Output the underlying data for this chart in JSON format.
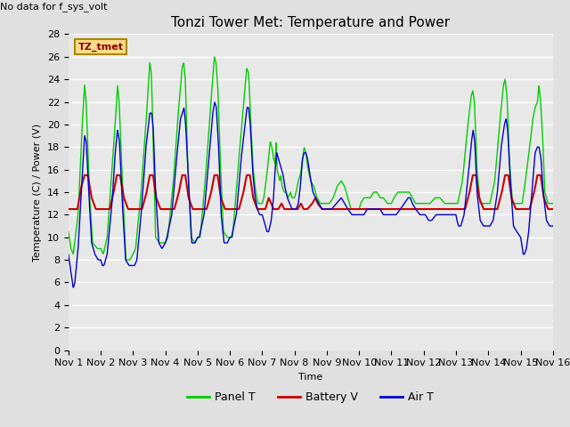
{
  "title": "Tonzi Tower Met: Temperature and Power",
  "no_data_label": "No data for f_sys_volt",
  "ylabel": "Temperature (C) / Power (V)",
  "xlabel": "Time",
  "ylim": [
    0,
    28
  ],
  "yticks": [
    0,
    2,
    4,
    6,
    8,
    10,
    12,
    14,
    16,
    18,
    20,
    22,
    24,
    26,
    28
  ],
  "xtick_labels": [
    "Nov 1",
    "Nov 2",
    "Nov 3",
    "Nov 4",
    "Nov 5",
    "Nov 6",
    "Nov 7",
    "Nov 8",
    "Nov 9",
    "Nov 10",
    "Nov 11",
    "Nov 12",
    "Nov 13",
    "Nov 14",
    "Nov 15",
    "Nov 16"
  ],
  "bg_color": "#e0e0e0",
  "plot_bg_color": "#e8e8e8",
  "legend_items": [
    {
      "label": "Panel T",
      "color": "#00cc00"
    },
    {
      "label": "Battery V",
      "color": "#cc0000"
    },
    {
      "label": "Air T",
      "color": "#0000cc"
    }
  ],
  "legend_box_label": "TZ_tmet",
  "legend_box_color": "#ffdd88",
  "legend_box_edge": "#aa8800",
  "title_fontsize": 11,
  "axis_fontsize": 8,
  "tick_fontsize": 8,
  "no_data_fontsize": 8,
  "legend_fontsize": 9
}
